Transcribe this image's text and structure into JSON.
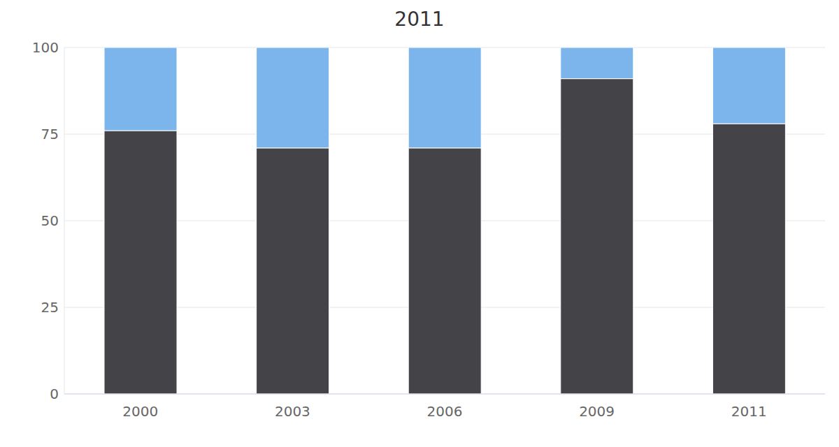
{
  "chart_data": {
    "type": "bar",
    "title": "2011",
    "stacked": true,
    "grid": true,
    "categories": [
      "2000",
      "2003",
      "2006",
      "2009",
      "2011"
    ],
    "series": [
      {
        "color": "#434348",
        "values": [
          76,
          71,
          71,
          91,
          78
        ]
      },
      {
        "color": "#7cb5ec",
        "values": [
          24,
          29,
          29,
          9,
          22
        ]
      }
    ],
    "ylim": [
      0,
      100
    ],
    "yticks": [
      0,
      25,
      50,
      75,
      100
    ]
  }
}
